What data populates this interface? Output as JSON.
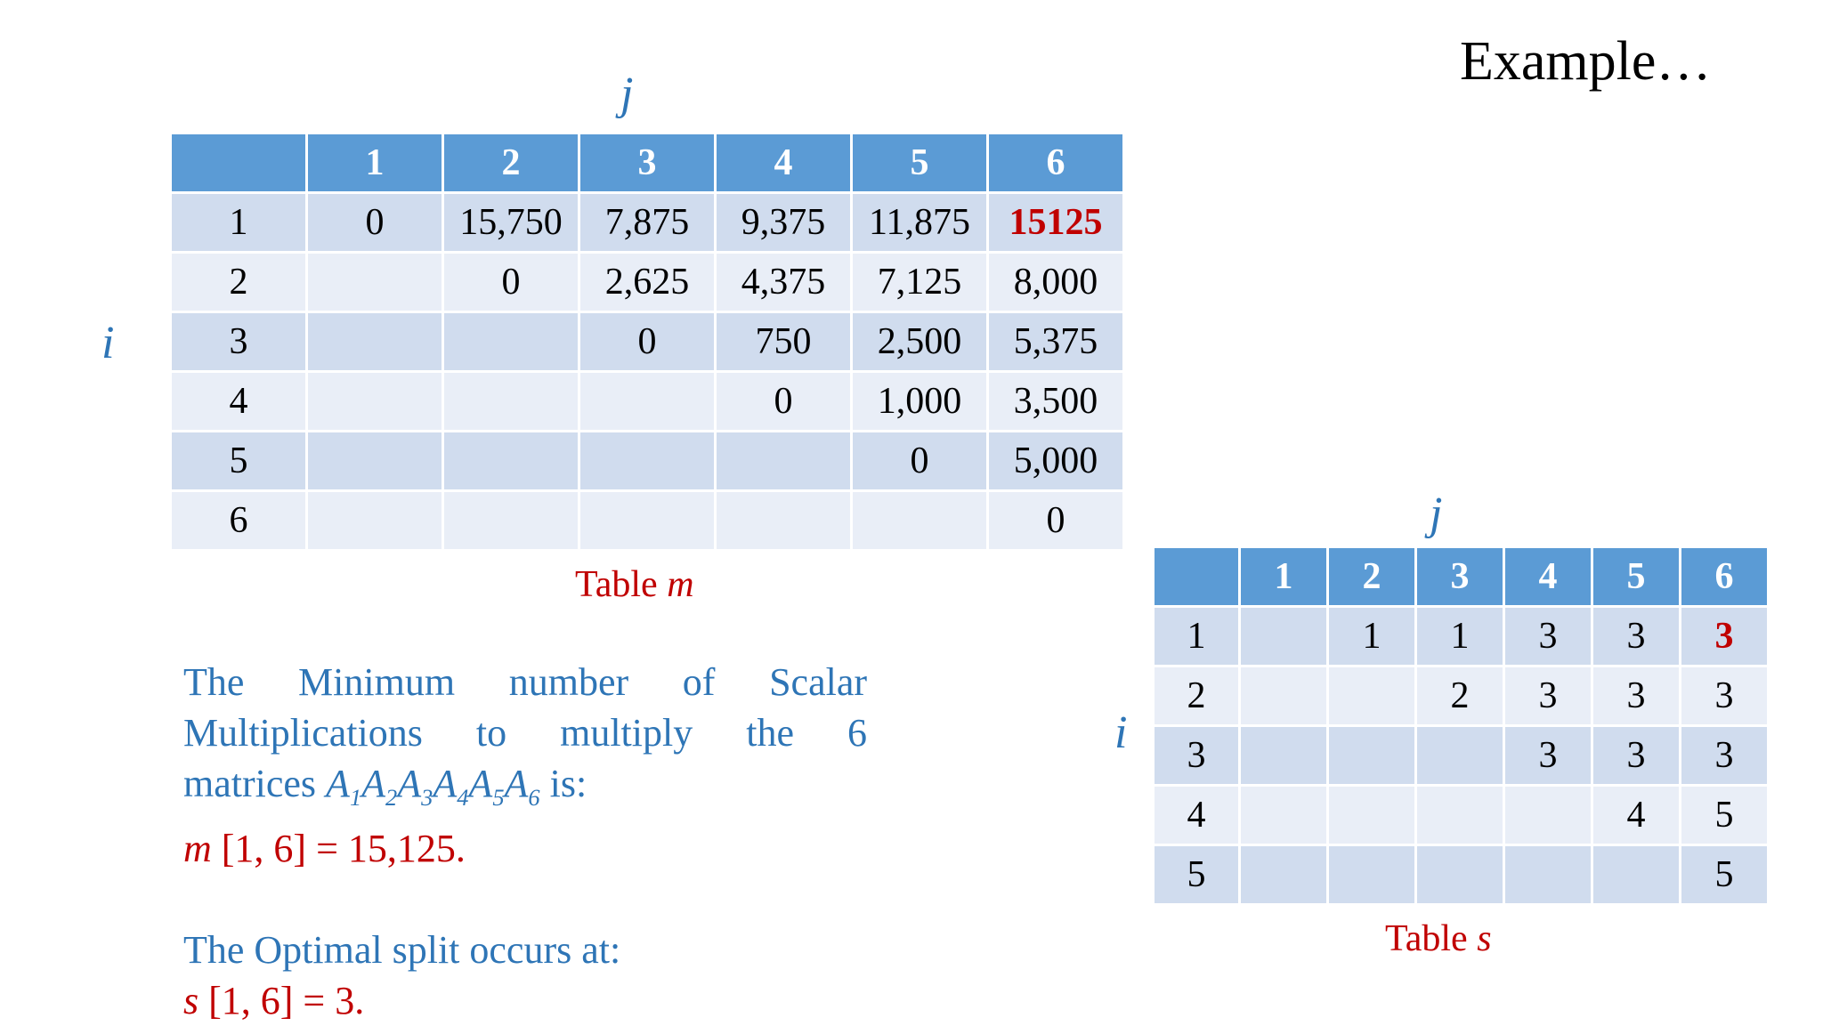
{
  "title": "Example…",
  "axis_labels": {
    "row": "i",
    "col": "j"
  },
  "table_m": {
    "caption_prefix": "Table",
    "caption_var": "m",
    "col_headers": [
      "",
      "1",
      "2",
      "3",
      "4",
      "5",
      "6"
    ],
    "rows": [
      [
        "1",
        "0",
        "15,750",
        "7,875",
        "9,375",
        "11,875",
        "15125"
      ],
      [
        "2",
        "",
        "0",
        "2,625",
        "4,375",
        "7,125",
        "8,000"
      ],
      [
        "3",
        "",
        "",
        "0",
        "750",
        "2,500",
        "5,375"
      ],
      [
        "4",
        "",
        "",
        "",
        "0",
        "1,000",
        "3,500"
      ],
      [
        "5",
        "",
        "",
        "",
        "",
        "0",
        "5,000"
      ],
      [
        "6",
        "",
        "",
        "",
        "",
        "",
        "0"
      ]
    ],
    "highlight_color": "#c00000"
  },
  "table_s": {
    "caption_prefix": "Table",
    "caption_var": "s",
    "col_headers": [
      "",
      "1",
      "2",
      "3",
      "4",
      "5",
      "6"
    ],
    "rows": [
      [
        "1",
        "",
        "1",
        "1",
        "3",
        "3",
        "3"
      ],
      [
        "2",
        "",
        "",
        "2",
        "3",
        "3",
        "3"
      ],
      [
        "3",
        "",
        "",
        "",
        "3",
        "3",
        "3"
      ],
      [
        "4",
        "",
        "",
        "",
        "",
        "4",
        "5"
      ],
      [
        "5",
        "",
        "",
        "",
        "",
        "",
        "5"
      ]
    ],
    "highlight_color": "#c00000"
  },
  "text": {
    "line1": "The Minimum number of Scalar",
    "line2": "Multiplications to multiply the 6",
    "line3_prefix": "matrices",
    "matrix_letter": "A",
    "matrix_subs": [
      "1",
      "2",
      "3",
      "4",
      "5",
      "6"
    ],
    "line3_suffix": " is:",
    "result_var": "m",
    "result_expr": " [1, 6] = 15,125.",
    "split_text": "The Optimal split occurs at:",
    "split_var": "s",
    "split_expr": " [1, 6] = 3."
  },
  "colors": {
    "header": "#5b9bd5",
    "row_dark": "#d0dcee",
    "row_light": "#e9eef7",
    "text_blue": "#2e75b6",
    "text_red": "#c00000"
  }
}
